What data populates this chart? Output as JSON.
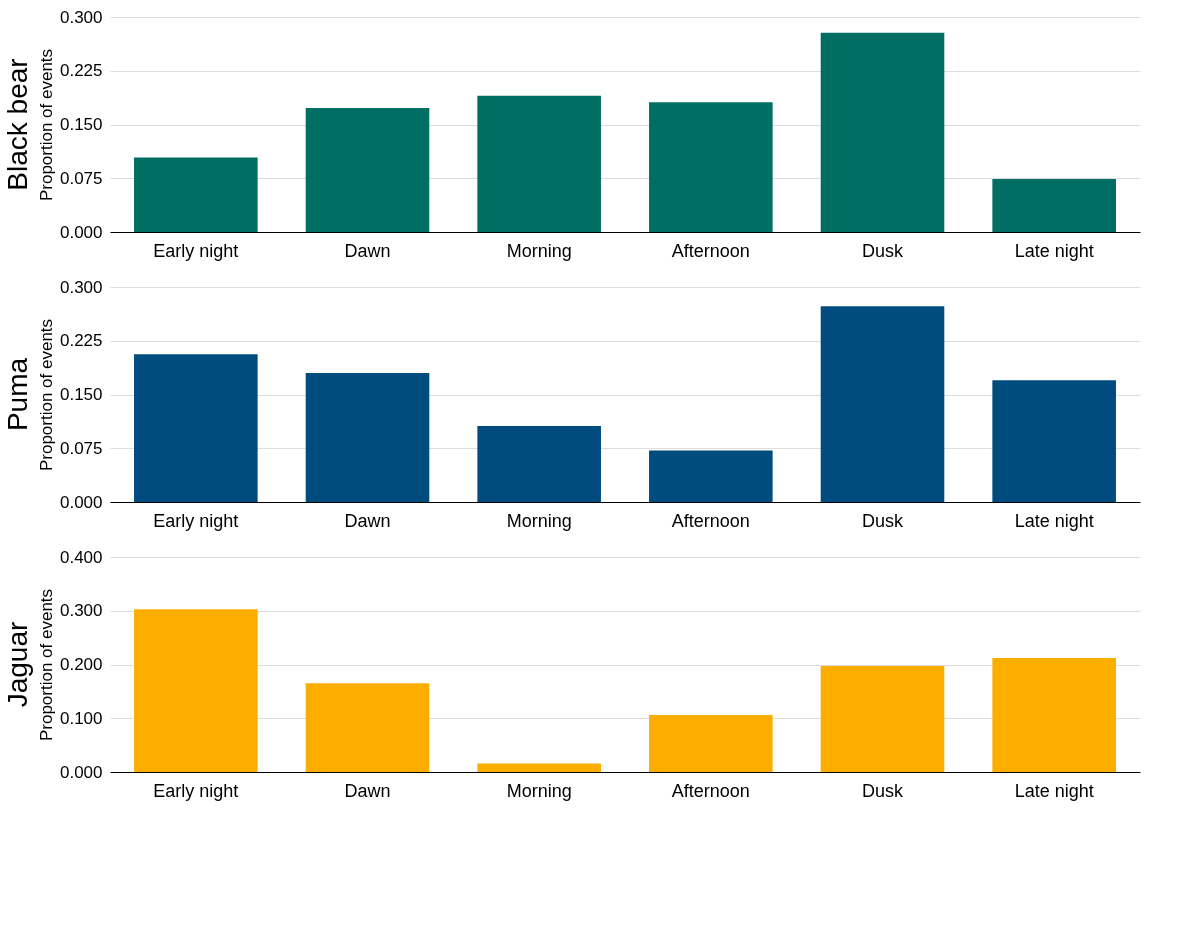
{
  "chart_data": [
    {
      "type": "bar",
      "title": "Black bear",
      "ylabel": "Proportion of events",
      "categories": [
        "Early night",
        "Dawn",
        "Morning",
        "Afternoon",
        "Dusk",
        "Late night"
      ],
      "values": [
        0.104,
        0.173,
        0.19,
        0.181,
        0.278,
        0.074
      ],
      "color": "#006e63",
      "ylim": [
        0,
        0.3
      ],
      "yticks": [
        {
          "value": 0,
          "label": "0.000"
        },
        {
          "value": 0.075,
          "label": "0.075"
        },
        {
          "value": 0.15,
          "label": "0.150"
        },
        {
          "value": 0.225,
          "label": "0.225"
        },
        {
          "value": 0.3,
          "label": "0.300"
        }
      ],
      "grid": "y"
    },
    {
      "type": "bar",
      "title": "Puma",
      "ylabel": "Proportion of events",
      "categories": [
        "Early night",
        "Dawn",
        "Morning",
        "Afternoon",
        "Dusk",
        "Late night"
      ],
      "values": [
        0.206,
        0.18,
        0.106,
        0.072,
        0.273,
        0.17
      ],
      "color": "#004c7f",
      "ylim": [
        0,
        0.3
      ],
      "yticks": [
        {
          "value": 0,
          "label": "0.000"
        },
        {
          "value": 0.075,
          "label": "0.075"
        },
        {
          "value": 0.15,
          "label": "0.150"
        },
        {
          "value": 0.225,
          "label": "0.225"
        },
        {
          "value": 0.3,
          "label": "0.300"
        }
      ],
      "grid": "y"
    },
    {
      "type": "bar",
      "title": "Jaguar",
      "ylabel": "Proportion of events",
      "categories": [
        "Early night",
        "Dawn",
        "Morning",
        "Afternoon",
        "Dusk",
        "Late night"
      ],
      "values": [
        0.303,
        0.165,
        0.016,
        0.106,
        0.197,
        0.212
      ],
      "color": "#fbae00",
      "ylim": [
        0,
        0.4
      ],
      "yticks": [
        {
          "value": 0,
          "label": "0.000"
        },
        {
          "value": 0.1,
          "label": "0.100"
        },
        {
          "value": 0.2,
          "label": "0.200"
        },
        {
          "value": 0.3,
          "label": "0.300"
        },
        {
          "value": 0.4,
          "label": "0.400"
        }
      ],
      "grid": "y"
    }
  ]
}
